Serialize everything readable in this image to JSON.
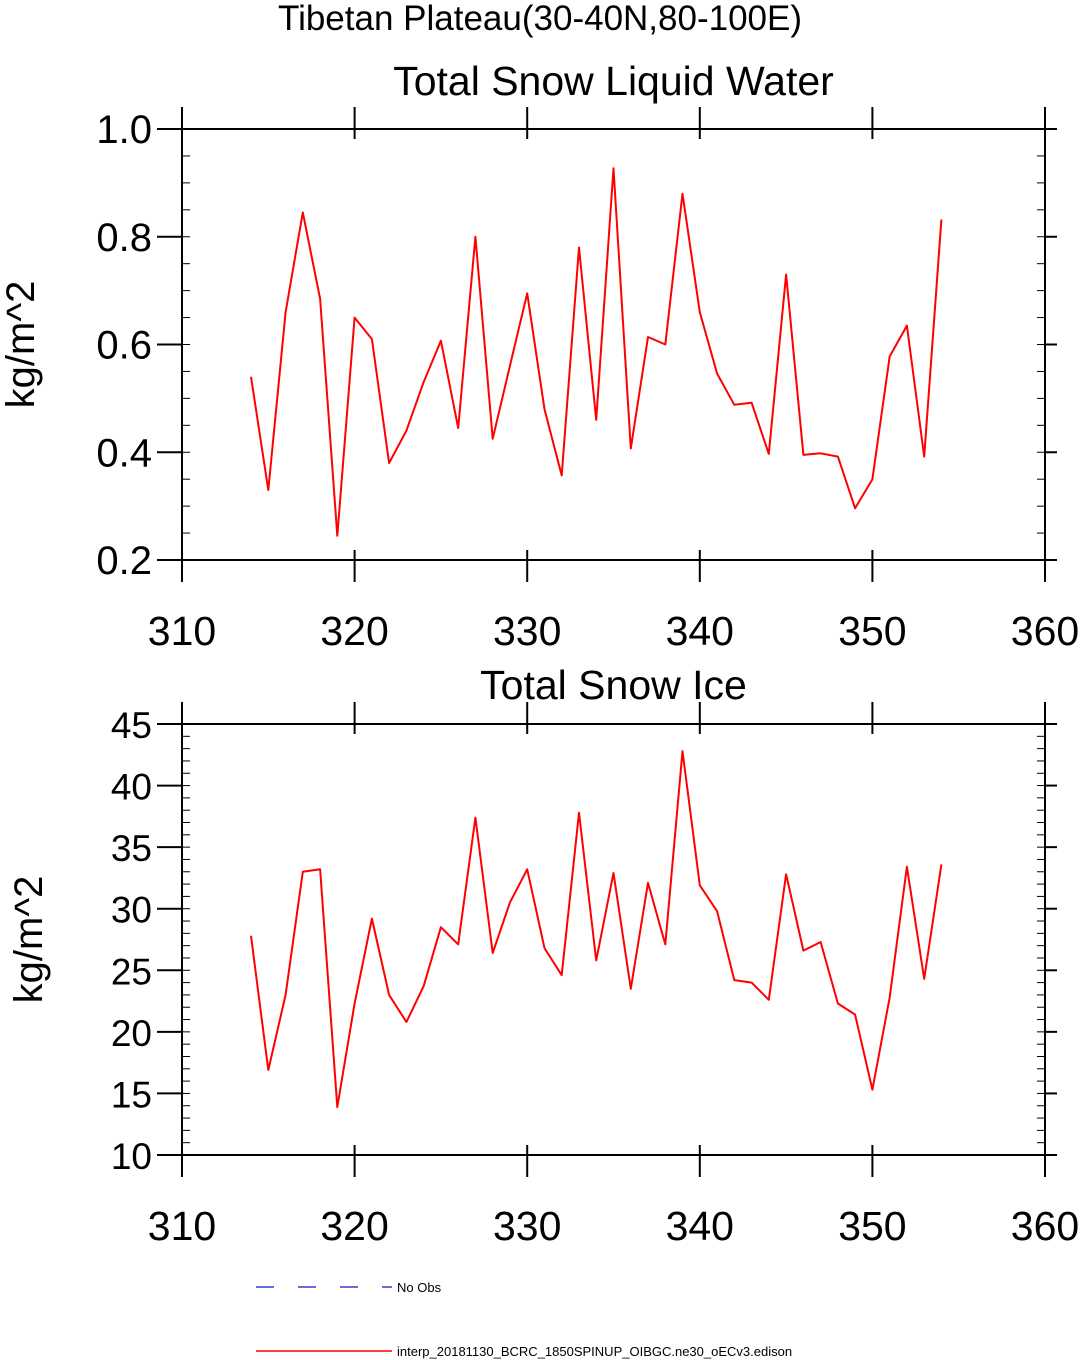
{
  "suptitle": "Tibetan Plateau(30-40N,80-100E)",
  "colors": {
    "model": "#ff0000",
    "obs": "#3a3ad6",
    "axis": "#000000"
  },
  "legend": {
    "obs_label": "No Obs",
    "model_label": "interp_20181130_BCRC_1850SPINUP_OIBGC.ne30_oECv3.edison"
  },
  "chart_data": [
    {
      "type": "line",
      "title": "Total Snow Liquid Water",
      "xlabel": "",
      "ylabel": "kg/m^2",
      "xlim": [
        310,
        360
      ],
      "ylim": [
        0.2,
        1.0
      ],
      "xticks": [
        310,
        320,
        330,
        340,
        350,
        360
      ],
      "xtick_labels": [
        "310",
        "320",
        "330",
        "340",
        "350",
        "360"
      ],
      "yticks": [
        0.2,
        0.4,
        0.6,
        0.8,
        1.0
      ],
      "ytick_labels": [
        "0.2",
        "0.4",
        "0.6",
        "0.8",
        "1.0"
      ],
      "yminor_step": 0.05,
      "series": [
        {
          "name": "interp_20181130_BCRC_1850SPINUP_OIBGC.ne30_oECv3.edison",
          "x": [
            314,
            315,
            316,
            317,
            318,
            319,
            320,
            321,
            322,
            323,
            324,
            325,
            326,
            327,
            328,
            329,
            330,
            331,
            332,
            333,
            334,
            335,
            336,
            337,
            338,
            339,
            340,
            341,
            342,
            343,
            344,
            345,
            346,
            347,
            348,
            349,
            350,
            351,
            352,
            353,
            354
          ],
          "values": [
            0.54,
            0.33,
            0.66,
            0.845,
            0.685,
            0.245,
            0.65,
            0.61,
            0.38,
            0.44,
            0.53,
            0.607,
            0.445,
            0.8,
            0.425,
            0.56,
            0.695,
            0.48,
            0.357,
            0.78,
            0.46,
            0.927,
            0.407,
            0.614,
            0.6,
            0.88,
            0.66,
            0.546,
            0.488,
            0.492,
            0.397,
            0.73,
            0.395,
            0.398,
            0.392,
            0.296,
            0.35,
            0.578,
            0.635,
            0.392,
            0.832
          ]
        }
      ]
    },
    {
      "type": "line",
      "title": "Total Snow Ice",
      "xlabel": "",
      "ylabel": "kg/m^2",
      "xlim": [
        310,
        360
      ],
      "ylim": [
        10,
        45
      ],
      "xticks": [
        310,
        320,
        330,
        340,
        350,
        360
      ],
      "xtick_labels": [
        "310",
        "320",
        "330",
        "340",
        "350",
        "360"
      ],
      "yticks": [
        10,
        15,
        20,
        25,
        30,
        35,
        40,
        45
      ],
      "ytick_labels": [
        "10",
        "15",
        "20",
        "25",
        "30",
        "35",
        "40",
        "45"
      ],
      "yminor_step": 1,
      "series": [
        {
          "name": "interp_20181130_BCRC_1850SPINUP_OIBGC.ne30_oECv3.edison",
          "x": [
            314,
            315,
            316,
            317,
            318,
            319,
            320,
            321,
            322,
            323,
            324,
            325,
            326,
            327,
            328,
            329,
            330,
            331,
            332,
            333,
            334,
            335,
            336,
            337,
            338,
            339,
            340,
            341,
            342,
            343,
            344,
            345,
            346,
            347,
            348,
            349,
            350,
            351,
            352,
            353,
            354
          ],
          "values": [
            27.8,
            16.9,
            23.0,
            33.0,
            33.2,
            13.9,
            22.3,
            29.2,
            23.0,
            20.8,
            23.7,
            28.5,
            27.1,
            37.4,
            26.4,
            30.5,
            33.2,
            26.8,
            24.6,
            37.8,
            25.8,
            32.9,
            23.5,
            32.1,
            27.1,
            42.8,
            31.9,
            29.8,
            24.2,
            24.0,
            22.6,
            32.8,
            26.6,
            27.3,
            22.3,
            21.4,
            15.3,
            22.8,
            33.4,
            24.3,
            33.6
          ]
        }
      ]
    }
  ]
}
